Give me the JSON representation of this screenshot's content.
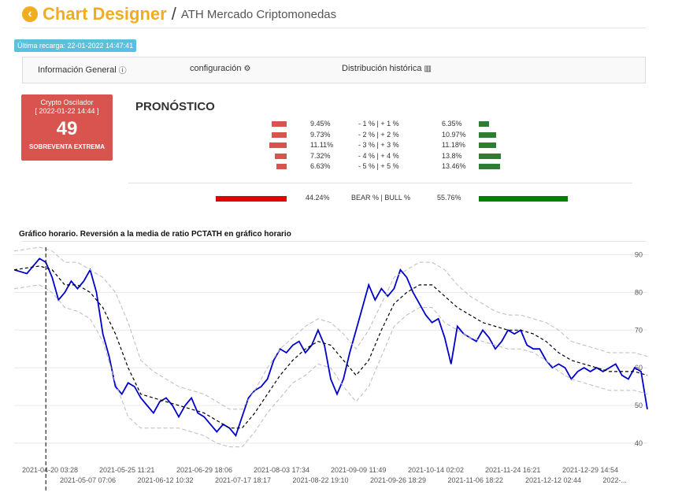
{
  "header": {
    "app_title": "Chart Designer",
    "separator": "/",
    "subtitle": "ATH Mercado Criptomonedas",
    "back_icon": "chevron-left-circle-icon"
  },
  "reload_badge": "Última recarga: 22-01-2022 14:47:41",
  "tabs": [
    {
      "label": "Información General",
      "icon": "info-circle-icon"
    },
    {
      "label": "configuración",
      "icon": "gears-icon"
    },
    {
      "label": "Distribución histórica",
      "icon": "bar-chart-icon"
    }
  ],
  "oscillator": {
    "title": "Crypto Oscilador",
    "datetime": "[ 2022-01-22 14:44 ]",
    "value": "49",
    "status": "SOBREVENTA EXTREMA",
    "color": "#d9534f"
  },
  "forecast": {
    "title": "PRONÓSTICO",
    "rows": [
      {
        "bear_pct": "9.45%",
        "range": "- 1 % | + 1 %",
        "bull_pct": "6.35%",
        "bear": 9.45,
        "bull": 6.35
      },
      {
        "bear_pct": "9.73%",
        "range": "- 2 % | + 2 %",
        "bull_pct": "10.97%",
        "bear": 9.73,
        "bull": 10.97
      },
      {
        "bear_pct": "11.11%",
        "range": "- 3 % | + 3 %",
        "bull_pct": "11.18%",
        "bear": 11.11,
        "bull": 11.18
      },
      {
        "bear_pct": "7.32%",
        "range": "- 4 % | + 4 %",
        "bull_pct": "13.8%",
        "bear": 7.32,
        "bull": 13.8
      },
      {
        "bear_pct": "6.63%",
        "range": "- 5 % | + 5 %",
        "bull_pct": "13.46%",
        "bear": 6.63,
        "bull": 13.46
      }
    ],
    "total": {
      "bear_pct": "44.24%",
      "label": "BEAR % | BULL %",
      "bull_pct": "55.76%",
      "bear": 44.24,
      "bull": 55.76
    },
    "bear_color": "#d9534f",
    "bull_color": "#2e7d32"
  },
  "chart_data": {
    "type": "line",
    "title": "Gráfico horario. Reversión a la media de ratio PCTATH en gráfico horario",
    "ylim": [
      36,
      92
    ],
    "yticks": [
      40,
      50,
      60,
      70,
      80,
      90
    ],
    "xlabels_top": [
      "2021-04-20 03:28",
      "2021-05-25 11:21",
      "2021-06-29 18:06",
      "2021-08-03 17:34",
      "2021-09-09 11:49",
      "2021-10-14 02:02",
      "2021-11-24 16:21",
      "2021-12-29 14:54"
    ],
    "xlabels_bottom": [
      "2021-05-07 07:06",
      "2021-06-12 10:32",
      "2021-07-17 18:17",
      "2021-08-22 19:10",
      "2021-09-26 18:29",
      "2021-11-06 18:22",
      "2021-12-12 02:44",
      "2022-..."
    ],
    "x_range": [
      0,
      100
    ],
    "series": [
      {
        "role": "price",
        "color": "#0000cc",
        "x": [
          0,
          2,
          4,
          5,
          6,
          7,
          8,
          9,
          10,
          11,
          12,
          13,
          14,
          15,
          16,
          17,
          18,
          19,
          20,
          21,
          22,
          23,
          24,
          25,
          26,
          27,
          28,
          29,
          30,
          31,
          32,
          33,
          34,
          35,
          36,
          37,
          38,
          39,
          40,
          41,
          42,
          43,
          44,
          45,
          46,
          47,
          48,
          49,
          50,
          51,
          52,
          53,
          54,
          55,
          56,
          57,
          58,
          59,
          60,
          61,
          62,
          63,
          64,
          65,
          66,
          67,
          68,
          69,
          70,
          71,
          72,
          73,
          74,
          75,
          76,
          77,
          78,
          79,
          80,
          81,
          82,
          83,
          84,
          85,
          86,
          87,
          88,
          89,
          90,
          91,
          92,
          93,
          94,
          95,
          96,
          97,
          98,
          99,
          100
        ],
        "y": [
          86,
          85,
          89,
          88,
          84,
          78,
          80,
          83,
          81,
          83,
          86,
          80,
          69,
          63,
          55,
          53,
          56,
          55,
          52,
          50,
          48,
          51,
          52,
          50,
          47,
          50,
          52,
          48,
          47,
          45,
          43,
          45,
          44,
          42,
          47,
          52,
          54,
          55,
          57,
          62,
          65,
          64,
          66,
          67,
          64,
          66,
          70,
          66,
          57,
          53,
          57,
          64,
          70,
          76,
          82,
          78,
          81,
          79,
          81,
          86,
          84,
          80,
          77,
          74,
          72,
          73,
          68,
          61,
          71,
          69,
          68,
          67,
          70,
          68,
          65,
          67,
          70,
          69,
          70,
          66,
          65,
          65,
          62,
          60,
          61,
          60,
          57,
          59,
          60,
          59,
          60,
          59,
          60,
          61,
          58,
          57,
          60,
          59,
          49
        ]
      },
      {
        "role": "mean",
        "color": "#000000",
        "x": [
          0,
          4,
          6,
          8,
          10,
          12,
          14,
          16,
          18,
          20,
          22,
          24,
          26,
          28,
          30,
          32,
          34,
          36,
          38,
          40,
          42,
          44,
          46,
          48,
          50,
          52,
          54,
          56,
          58,
          60,
          62,
          64,
          66,
          68,
          70,
          72,
          74,
          76,
          78,
          80,
          82,
          84,
          86,
          88,
          90,
          92,
          94,
          96,
          98,
          100
        ],
        "y": [
          86,
          87,
          86,
          82,
          82,
          80,
          76,
          69,
          60,
          53,
          52,
          51,
          50,
          49,
          48,
          46,
          44,
          44,
          48,
          53,
          58,
          62,
          65,
          67,
          66,
          62,
          58,
          62,
          70,
          77,
          80,
          82,
          82,
          79,
          76,
          74,
          72,
          71,
          70,
          70,
          69,
          67,
          64,
          62,
          61,
          60,
          59,
          59,
          59,
          58
        ]
      },
      {
        "role": "upper_band",
        "color": "#bbbbbb",
        "x": [
          0,
          4,
          6,
          8,
          10,
          12,
          14,
          16,
          18,
          20,
          22,
          24,
          26,
          28,
          30,
          32,
          34,
          36,
          38,
          40,
          42,
          44,
          46,
          48,
          50,
          52,
          54,
          56,
          58,
          60,
          62,
          64,
          66,
          68,
          70,
          72,
          74,
          76,
          78,
          80,
          82,
          84,
          86,
          88,
          90,
          92,
          94,
          96,
          98,
          100
        ],
        "y": [
          91,
          92,
          91,
          88,
          88,
          86,
          84,
          80,
          72,
          62,
          59,
          57,
          55,
          54,
          53,
          51,
          49,
          49,
          54,
          60,
          65,
          68,
          71,
          73,
          72,
          69,
          65,
          70,
          77,
          84,
          86,
          88,
          88,
          86,
          82,
          79,
          77,
          75,
          74,
          74,
          73,
          72,
          70,
          67,
          66,
          65,
          64,
          64,
          64,
          63
        ]
      },
      {
        "role": "lower_band",
        "color": "#bbbbbb",
        "x": [
          0,
          4,
          6,
          8,
          10,
          12,
          14,
          16,
          18,
          20,
          22,
          24,
          26,
          28,
          30,
          32,
          34,
          36,
          38,
          40,
          42,
          44,
          46,
          48,
          50,
          52,
          54,
          56,
          58,
          60,
          62,
          64,
          66,
          68,
          70,
          72,
          74,
          76,
          78,
          80,
          82,
          84,
          86,
          88,
          90,
          92,
          94,
          96,
          98,
          100
        ],
        "y": [
          81,
          82,
          80,
          76,
          75,
          73,
          67,
          56,
          47,
          44,
          44,
          44,
          44,
          43,
          42,
          40,
          39,
          39,
          43,
          48,
          52,
          56,
          58,
          61,
          60,
          55,
          51,
          55,
          63,
          71,
          74,
          76,
          76,
          72,
          70,
          68,
          67,
          66,
          65,
          65,
          64,
          62,
          59,
          57,
          56,
          55,
          54,
          54,
          54,
          53
        ]
      }
    ],
    "marker_x": 5,
    "grid": true
  }
}
